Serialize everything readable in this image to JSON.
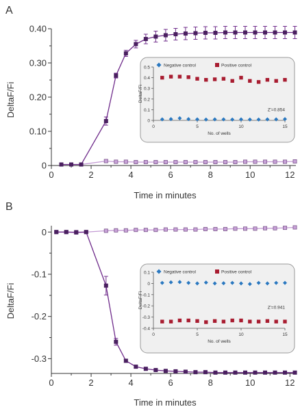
{
  "colors": {
    "positive": "#4a2060",
    "negative": "#c8a2d8",
    "line_positive": "#6e2a8a",
    "line_negative": "#c49bd4",
    "inset_bg": "#f0f0f0",
    "inset_border": "#9a9a9a",
    "inset_negative": "#2a78c0",
    "inset_positive": "#a81c30",
    "axis": "#333333",
    "text": "#333333"
  },
  "chart_data": [
    {
      "panel_label": "A",
      "type": "line",
      "xlabel": "Time in minutes",
      "ylabel": "DeltaF/Fi",
      "xlim": [
        0,
        12.3
      ],
      "ylim": [
        0,
        0.4
      ],
      "x_ticks": [
        0,
        2,
        4,
        6,
        8,
        10,
        12
      ],
      "y_ticks": [
        0,
        0.1,
        0.2,
        0.3,
        0.4
      ],
      "y_tick_labels": [
        "0",
        "0.10",
        "0.20",
        "0.30",
        "0.40"
      ],
      "series": [
        {
          "role": "positive",
          "x": [
            0.5,
            1.0,
            1.5,
            2.75,
            3.25,
            3.75,
            4.25,
            4.75,
            5.25,
            5.75,
            6.25,
            6.75,
            7.25,
            7.75,
            8.25,
            8.75,
            9.25,
            9.75,
            10.25,
            10.75,
            11.25,
            11.75,
            12.25
          ],
          "y": [
            0.003,
            0.003,
            0.003,
            0.13,
            0.263,
            0.328,
            0.355,
            0.37,
            0.377,
            0.381,
            0.384,
            0.386,
            0.387,
            0.388,
            0.388,
            0.389,
            0.389,
            0.389,
            0.389,
            0.389,
            0.389,
            0.389,
            0.389
          ],
          "err": [
            0.002,
            0.002,
            0.002,
            0.012,
            0.007,
            0.009,
            0.011,
            0.014,
            0.016,
            0.017,
            0.017,
            0.018,
            0.018,
            0.018,
            0.018,
            0.018,
            0.018,
            0.018,
            0.018,
            0.018,
            0.018,
            0.018,
            0.018
          ]
        },
        {
          "role": "negative",
          "x": [
            0.5,
            1.0,
            1.5,
            2.75,
            3.25,
            3.75,
            4.25,
            4.75,
            5.25,
            5.75,
            6.25,
            6.75,
            7.25,
            7.75,
            8.25,
            8.75,
            9.25,
            9.75,
            10.25,
            10.75,
            11.25,
            11.75,
            12.25
          ],
          "y": [
            0.003,
            0.003,
            0.003,
            0.013,
            0.011,
            0.011,
            0.01,
            0.01,
            0.01,
            0.01,
            0.01,
            0.01,
            0.01,
            0.01,
            0.01,
            0.01,
            0.01,
            0.011,
            0.011,
            0.011,
            0.011,
            0.011,
            0.012
          ],
          "err": [
            0.001,
            0.001,
            0.001,
            0.004,
            0.003,
            0.003,
            0.003,
            0.003,
            0.003,
            0.003,
            0.003,
            0.003,
            0.003,
            0.003,
            0.003,
            0.003,
            0.003,
            0.003,
            0.003,
            0.003,
            0.003,
            0.003,
            0.003
          ]
        }
      ],
      "inset": {
        "type": "scatter",
        "xlabel": "No. of wells",
        "ylabel": "DeltaF/Fi",
        "xlim": [
          0,
          15
        ],
        "ylim": [
          0,
          0.5
        ],
        "x_ticks": [
          0,
          5,
          10,
          15
        ],
        "y_ticks": [
          0,
          0.1,
          0.2,
          0.3,
          0.4,
          0.5
        ],
        "y_tick_labels": [
          "0",
          "0.1",
          "0.2",
          "0.3",
          "0.4",
          "0.5"
        ],
        "legend": [
          "Negative control",
          "Positive control"
        ],
        "annotation": "Z'=0.854",
        "series": [
          {
            "name": "Negative control",
            "x": [
              1,
              2,
              3,
              4,
              5,
              6,
              7,
              8,
              9,
              10,
              11,
              12,
              13,
              14,
              15
            ],
            "y": [
              0.01,
              0.012,
              0.02,
              0.012,
              0.01,
              0.008,
              0.01,
              0.01,
              0.008,
              0.01,
              0.008,
              0.008,
              0.01,
              0.01,
              0.012
            ]
          },
          {
            "name": "Positive control",
            "x": [
              1,
              2,
              3,
              4,
              5,
              6,
              7,
              8,
              9,
              10,
              11,
              12,
              13,
              14,
              15
            ],
            "y": [
              0.4,
              0.41,
              0.41,
              0.405,
              0.39,
              0.38,
              0.385,
              0.39,
              0.37,
              0.4,
              0.37,
              0.36,
              0.38,
              0.37,
              0.38
            ]
          }
        ]
      }
    },
    {
      "panel_label": "B",
      "type": "line",
      "xlabel": "Time in minutes",
      "ylabel": "DeltaF/Fi",
      "xlim": [
        0,
        12.3
      ],
      "ylim": [
        -0.335,
        0.015
      ],
      "x_ticks": [
        0,
        2,
        4,
        6,
        8,
        10,
        12
      ],
      "y_ticks": [
        0,
        -0.1,
        -0.2,
        -0.3
      ],
      "y_tick_labels": [
        "0",
        "-0.1",
        "-0.2",
        "-0.3"
      ],
      "series": [
        {
          "role": "positive",
          "x": [
            0.25,
            0.75,
            1.25,
            1.75,
            2.75,
            3.25,
            3.75,
            4.25,
            4.75,
            5.25,
            5.75,
            6.25,
            6.75,
            7.25,
            7.75,
            8.25,
            8.75,
            9.25,
            9.75,
            10.25,
            10.75,
            11.25,
            11.75,
            12.25
          ],
          "y": [
            0.0,
            0.0,
            -0.001,
            0.0,
            -0.127,
            -0.26,
            -0.305,
            -0.319,
            -0.324,
            -0.327,
            -0.329,
            -0.33,
            -0.331,
            -0.332,
            -0.332,
            -0.333,
            -0.333,
            -0.333,
            -0.333,
            -0.333,
            -0.333,
            -0.333,
            -0.333,
            -0.333
          ],
          "err": [
            0.002,
            0.002,
            0.002,
            0.002,
            0.022,
            0.008,
            0.004,
            0.003,
            0.003,
            0.003,
            0.003,
            0.003,
            0.003,
            0.003,
            0.003,
            0.003,
            0.003,
            0.003,
            0.003,
            0.003,
            0.003,
            0.003,
            0.003,
            0.003
          ]
        },
        {
          "role": "negative",
          "x": [
            0.25,
            0.75,
            1.25,
            1.75,
            2.75,
            3.25,
            3.75,
            4.25,
            4.75,
            5.25,
            5.75,
            6.25,
            6.75,
            7.25,
            7.75,
            8.25,
            8.75,
            9.25,
            9.75,
            10.25,
            10.75,
            11.25,
            11.75,
            12.25
          ],
          "y": [
            0.0,
            0.0,
            0.0,
            0.0,
            0.003,
            0.004,
            0.004,
            0.005,
            0.005,
            0.005,
            0.006,
            0.006,
            0.006,
            0.006,
            0.007,
            0.007,
            0.007,
            0.008,
            0.008,
            0.008,
            0.009,
            0.009,
            0.01,
            0.011
          ],
          "err": [
            0.001,
            0.001,
            0.001,
            0.001,
            0.002,
            0.002,
            0.002,
            0.002,
            0.002,
            0.002,
            0.002,
            0.002,
            0.002,
            0.002,
            0.002,
            0.002,
            0.002,
            0.002,
            0.002,
            0.002,
            0.002,
            0.002,
            0.002,
            0.003
          ]
        }
      ],
      "inset": {
        "type": "scatter",
        "xlabel": "No. of wells",
        "ylabel": "DeltaF/Fi",
        "xlim": [
          0,
          15
        ],
        "ylim": [
          -0.4,
          0.1
        ],
        "x_ticks": [
          0,
          5,
          10,
          15
        ],
        "y_ticks": [
          0.1,
          0,
          -0.1,
          -0.2,
          -0.3,
          -0.4
        ],
        "y_tick_labels": [
          "0.1",
          "0",
          "-0.1",
          "-0.2",
          "-0.3",
          "-0.4"
        ],
        "legend": [
          "Negative control",
          "Positive control"
        ],
        "annotation": "Z'=0.941",
        "series": [
          {
            "name": "Negative control",
            "x": [
              1,
              2,
              3,
              4,
              5,
              6,
              7,
              8,
              9,
              10,
              11,
              12,
              13,
              14,
              15
            ],
            "y": [
              0.005,
              0.01,
              0.012,
              0.005,
              0.0,
              0.008,
              0.0,
              0.002,
              0.005,
              0.0,
              -0.005,
              0.005,
              0.0,
              0.005,
              0.005
            ]
          },
          {
            "name": "Positive control",
            "x": [
              1,
              2,
              3,
              4,
              5,
              6,
              7,
              8,
              9,
              10,
              11,
              12,
              13,
              14,
              15
            ],
            "y": [
              -0.34,
              -0.34,
              -0.33,
              -0.33,
              -0.335,
              -0.345,
              -0.335,
              -0.34,
              -0.33,
              -0.33,
              -0.34,
              -0.34,
              -0.335,
              -0.34,
              -0.34
            ]
          }
        ]
      }
    }
  ]
}
